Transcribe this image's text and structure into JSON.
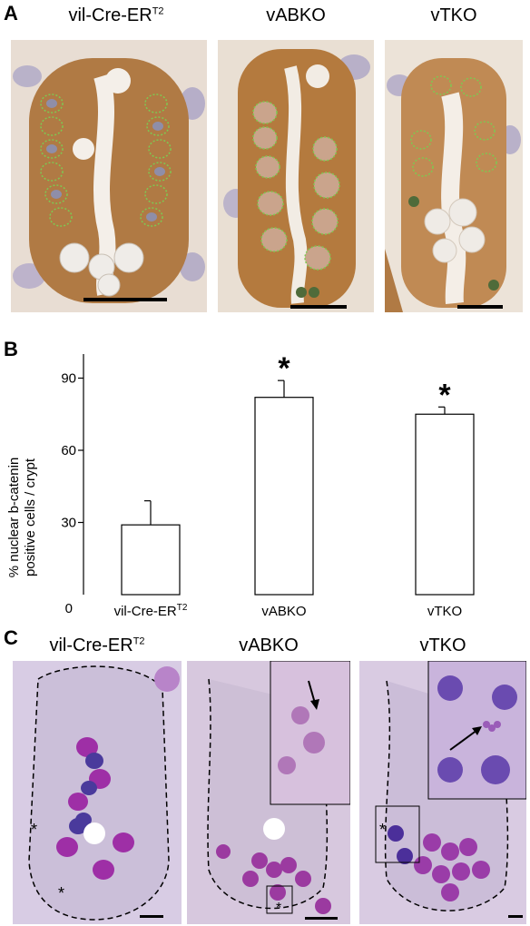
{
  "panel_a": {
    "letter": "A",
    "titles": [
      {
        "main": "vil-Cre-ER",
        "sup": "T2"
      },
      {
        "main": "vABKO",
        "sup": ""
      },
      {
        "main": "vTKO",
        "sup": ""
      }
    ]
  },
  "panel_b": {
    "letter": "B",
    "chart_data": {
      "type": "bar",
      "categories": [
        "vil-Cre-ER",
        "vABKO",
        "vTKO"
      ],
      "category_sup": [
        "T2",
        "",
        ""
      ],
      "values": [
        29,
        82,
        75
      ],
      "errors": [
        10,
        7,
        3
      ],
      "significance": [
        "",
        "*",
        "*"
      ],
      "ylabel_line1": "% nuclear b-catenin",
      "ylabel_line2": "positive cells / crypt",
      "xlabel": "",
      "ylim": [
        0,
        100
      ],
      "yticks": [
        0,
        30,
        60,
        90
      ],
      "grid": false
    }
  },
  "panel_c": {
    "letter": "C",
    "titles": [
      {
        "main": "vil-Cre-ER",
        "sup": "T2"
      },
      {
        "main": "vABKO",
        "sup": ""
      },
      {
        "main": "vTKO",
        "sup": ""
      }
    ],
    "asterisk": "*"
  }
}
